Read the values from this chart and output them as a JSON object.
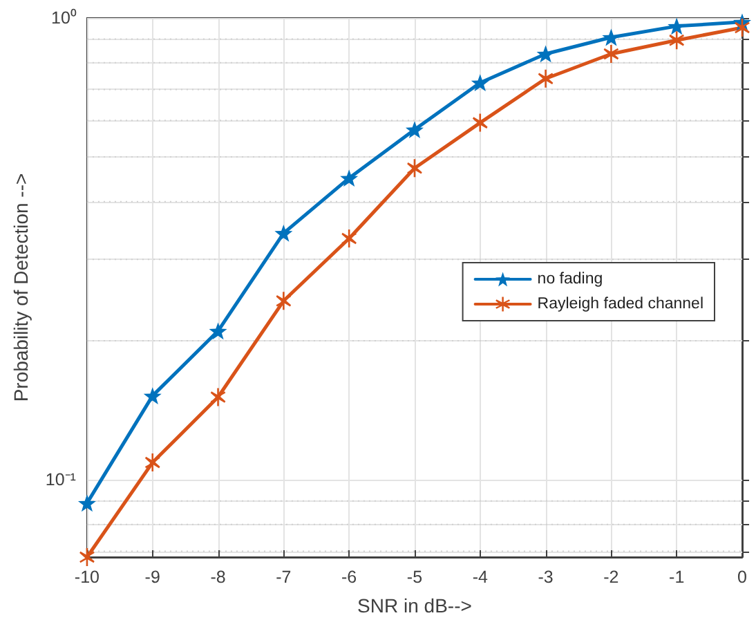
{
  "chart_data": {
    "type": "line",
    "xlabel": "SNR in dB-->",
    "ylabel": "Probability of Detection -->",
    "x": [
      -10,
      -9,
      -8,
      -7,
      -6,
      -5,
      -4,
      -3,
      -2,
      -1,
      0
    ],
    "series": [
      {
        "name": "no fading",
        "color": "#0072bd",
        "marker": "star",
        "values": [
          0.089,
          0.152,
          0.21,
          0.342,
          0.45,
          0.573,
          0.724,
          0.836,
          0.908,
          0.96,
          0.98
        ]
      },
      {
        "name": "Rayleigh faded channel",
        "color": "#d95319",
        "marker": "cross",
        "values": [
          0.068,
          0.109,
          0.151,
          0.244,
          0.333,
          0.473,
          0.593,
          0.739,
          0.836,
          0.895,
          0.953
        ]
      }
    ],
    "log": "y",
    "xlim": [
      -10,
      0
    ],
    "xticks": [
      -10,
      -9,
      -8,
      -7,
      -6,
      -5,
      -4,
      -3,
      -2,
      -1,
      0
    ],
    "ylim": [
      0.068,
      1
    ],
    "yticks": [
      {
        "value": 0.07,
        "label": null
      },
      {
        "value": 0.08,
        "label": null
      },
      {
        "value": 0.09,
        "label": null
      },
      {
        "value": 0.1,
        "label": "10⁻¹"
      },
      {
        "value": 0.2,
        "label": null
      },
      {
        "value": 0.3,
        "label": null
      },
      {
        "value": 0.4,
        "label": null
      },
      {
        "value": 0.5,
        "label": null
      },
      {
        "value": 0.6,
        "label": null
      },
      {
        "value": 0.7,
        "label": null
      },
      {
        "value": 0.8,
        "label": null
      },
      {
        "value": 0.9,
        "label": null
      },
      {
        "value": 1,
        "label": "10⁰"
      }
    ],
    "grid": true,
    "legend": "right",
    "line_style": "solid"
  }
}
